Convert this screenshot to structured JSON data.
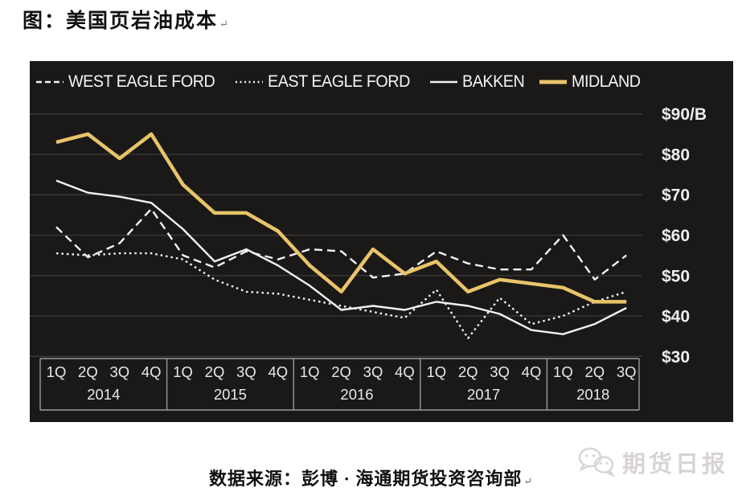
{
  "page": {
    "title": "图：美国页岩油成本",
    "return_mark": "↵",
    "footer_source": "数据来源：彭博 · 海通期货投资咨询部",
    "watermark_text": "期货日报"
  },
  "chart_data": {
    "type": "line",
    "title": "美国页岩油成本 (US shale oil cost)",
    "unit": "$/B",
    "ylim": [
      30,
      90
    ],
    "grid": true,
    "legend_position": "top",
    "y_ticks": [
      {
        "label": "$90/B",
        "value": 90
      },
      {
        "label": "$80",
        "value": 80
      },
      {
        "label": "$70",
        "value": 70
      },
      {
        "label": "$60",
        "value": 60
      },
      {
        "label": "$50",
        "value": 50
      },
      {
        "label": "$40",
        "value": 40
      },
      {
        "label": "$30",
        "value": 30
      }
    ],
    "years": [
      {
        "label": "2014",
        "quarters": [
          "1Q",
          "2Q",
          "3Q",
          "4Q"
        ]
      },
      {
        "label": "2015",
        "quarters": [
          "1Q",
          "2Q",
          "3Q",
          "4Q"
        ]
      },
      {
        "label": "2016",
        "quarters": [
          "1Q",
          "2Q",
          "3Q",
          "4Q"
        ]
      },
      {
        "label": "2017",
        "quarters": [
          "1Q",
          "2Q",
          "3Q",
          "4Q"
        ]
      },
      {
        "label": "2018",
        "quarters": [
          "1Q",
          "2Q",
          "3Q"
        ]
      }
    ],
    "categories": [
      "1Q2014",
      "2Q2014",
      "3Q2014",
      "4Q2014",
      "1Q2015",
      "2Q2015",
      "3Q2015",
      "4Q2015",
      "1Q2016",
      "2Q2016",
      "3Q2016",
      "4Q2016",
      "1Q2017",
      "2Q2017",
      "3Q2017",
      "4Q2017",
      "1Q2018",
      "2Q2018",
      "3Q2018"
    ],
    "series": [
      {
        "name": "WEST EAGLE FORD",
        "style": "dashed",
        "color": "#f2f2f2",
        "width": 2.4,
        "values": [
          62,
          54.5,
          58,
          66.5,
          55,
          52,
          56,
          54,
          56.5,
          56,
          49.5,
          50.5,
          56,
          53,
          51.5,
          51.5,
          60,
          49,
          55
        ]
      },
      {
        "name": "EAST EAGLE FORD",
        "style": "dotted",
        "color": "#f2f2f2",
        "width": 2.4,
        "values": [
          55.5,
          55,
          55.5,
          55.5,
          54,
          49,
          46,
          45.5,
          44,
          42.5,
          41,
          39.5,
          46.5,
          34.5,
          44.5,
          38,
          40,
          43.5,
          46
        ]
      },
      {
        "name": "BAKKEN",
        "style": "solid",
        "color": "#f2f2f2",
        "width": 2.4,
        "values": [
          73.5,
          70.5,
          69.5,
          68,
          61.5,
          53.5,
          56.5,
          52.5,
          47.5,
          41.5,
          42.5,
          41.5,
          43.5,
          42.5,
          40.5,
          36.5,
          35.5,
          38,
          42
        ]
      },
      {
        "name": "MIDLAND",
        "style": "solid",
        "color": "#e8c469",
        "width": 4.5,
        "values": [
          83,
          85,
          79,
          85,
          72.5,
          65.5,
          65.5,
          61,
          52.5,
          46,
          56.5,
          50.5,
          53.5,
          46,
          49,
          48,
          47,
          43.5,
          43.5
        ]
      }
    ],
    "colors": {
      "panel_background": "#1b1818",
      "grid": "#3d3a3a",
      "axis_box": "#9a9a9a",
      "text": "#ededed",
      "accent": "#e8c469"
    }
  }
}
